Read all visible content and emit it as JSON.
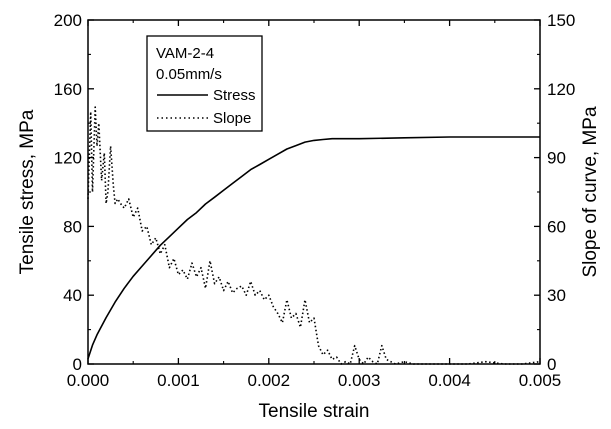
{
  "chart_data": {
    "type": "line",
    "title": "",
    "xlabel": "Tensile strain",
    "ylabel": "Tensile stress, MPa",
    "y2label": "Slope of curve, MPa",
    "xlim": [
      0,
      0.005
    ],
    "ylim": [
      0,
      200
    ],
    "y2lim": [
      0,
      150
    ],
    "x_ticks": [
      "0.000",
      "0.001",
      "0.002",
      "0.003",
      "0.004",
      "0.005"
    ],
    "y_ticks": [
      "0",
      "40",
      "80",
      "120",
      "160",
      "200"
    ],
    "y2_ticks": [
      "0",
      "30",
      "60",
      "90",
      "120",
      "150"
    ],
    "grid": false,
    "legend": {
      "placement": "top-left",
      "header": [
        "VAM-2-4",
        "0.05mm/s"
      ],
      "entries": [
        "Stress",
        "Slope"
      ]
    },
    "series": [
      {
        "name": "Stress",
        "axis": "left",
        "line_style": "solid",
        "x": [
          0,
          5e-05,
          0.0001,
          0.0002,
          0.0003,
          0.0004,
          0.0005,
          0.0006,
          0.0007,
          0.0008,
          0.0009,
          0.001,
          0.0011,
          0.0012,
          0.0013,
          0.0014,
          0.0015,
          0.0016,
          0.0017,
          0.0018,
          0.0019,
          0.002,
          0.0021,
          0.0022,
          0.0023,
          0.0024,
          0.0025,
          0.0026,
          0.0027,
          0.0028,
          0.003,
          0.0035,
          0.004,
          0.0045,
          0.005
        ],
        "values": [
          3,
          11,
          17,
          27,
          36,
          44,
          51,
          57,
          63,
          69,
          74,
          79,
          84,
          88,
          93,
          97,
          101,
          105,
          109,
          113,
          116,
          119,
          122,
          125,
          127,
          129,
          130,
          130.5,
          131,
          131,
          131,
          131.5,
          132,
          132,
          132
        ]
      },
      {
        "name": "Slope",
        "axis": "right",
        "line_style": "dotted",
        "x": [
          0,
          3e-05,
          5e-05,
          8e-05,
          0.0001,
          0.00012,
          0.00015,
          0.00018,
          0.0002,
          0.00022,
          0.00025,
          0.00028,
          0.0003,
          0.00033,
          0.00036,
          0.0004,
          0.00045,
          0.0005,
          0.00055,
          0.0006,
          0.00065,
          0.0007,
          0.00075,
          0.0008,
          0.00085,
          0.0009,
          0.00095,
          0.001,
          0.00105,
          0.0011,
          0.00115,
          0.0012,
          0.00125,
          0.0013,
          0.00135,
          0.0014,
          0.00145,
          0.0015,
          0.00155,
          0.0016,
          0.00165,
          0.0017,
          0.00175,
          0.0018,
          0.00185,
          0.0019,
          0.00195,
          0.002,
          0.00205,
          0.0021,
          0.00215,
          0.0022,
          0.00225,
          0.0023,
          0.00235,
          0.0024,
          0.00245,
          0.0025,
          0.00255,
          0.0026,
          0.00265,
          0.0027,
          0.00275,
          0.0028,
          0.00285,
          0.0029,
          0.00295,
          0.003,
          0.00305,
          0.0031,
          0.00315,
          0.0032,
          0.00325,
          0.0033,
          0.0034,
          0.0035,
          0.0036,
          0.0038,
          0.004,
          0.0042,
          0.0044,
          0.0046,
          0.0048,
          0.005
        ],
        "values": [
          72,
          110,
          75,
          112,
          95,
          105,
          80,
          92,
          70,
          75,
          95,
          78,
          70,
          72,
          70,
          68,
          72,
          64,
          68,
          58,
          60,
          52,
          55,
          48,
          52,
          42,
          46,
          39,
          41,
          37,
          44,
          38,
          42,
          33,
          45,
          35,
          38,
          32,
          36,
          31,
          33,
          34,
          30,
          36,
          30,
          32,
          28,
          30,
          25,
          22,
          18,
          28,
          20,
          22,
          16,
          28,
          18,
          20,
          8,
          4,
          6,
          2,
          3,
          0,
          1,
          0,
          8,
          2,
          0,
          3,
          1,
          0,
          8,
          2,
          0,
          1,
          0,
          0,
          0,
          0,
          1,
          0,
          0,
          1
        ]
      }
    ]
  }
}
